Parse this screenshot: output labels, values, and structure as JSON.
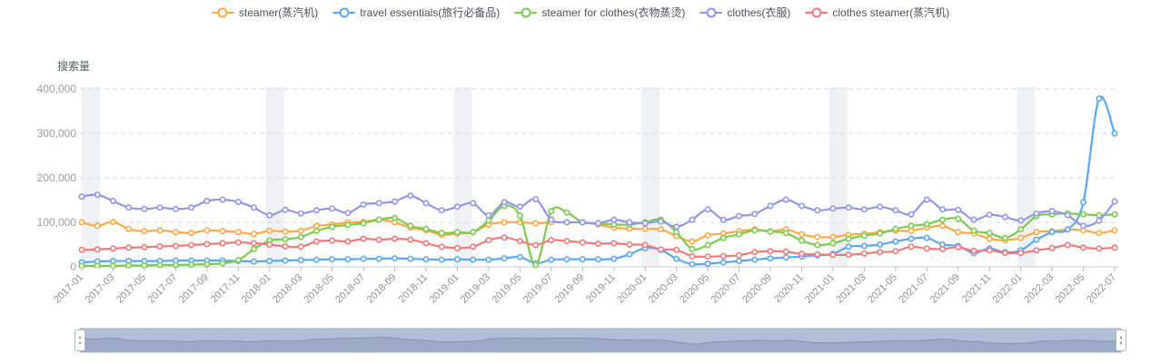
{
  "legend": {
    "items": [
      {
        "key": "steamer",
        "label": "steamer(蒸汽机)",
        "color": "#FFA843"
      },
      {
        "key": "travel-essentials",
        "label": "travel essentials(旅行必备品)",
        "color": "#57A9F5"
      },
      {
        "key": "steamer-for-clothes",
        "label": "steamer for clothes(衣物蒸烫)",
        "color": "#77CE4B"
      },
      {
        "key": "clothes",
        "label": "clothes(衣服)",
        "color": "#9196EC"
      },
      {
        "key": "clothes-steamer",
        "label": "clothes steamer(蒸汽机)",
        "color": "#F57878"
      }
    ]
  },
  "chart_data": {
    "type": "line",
    "title": "",
    "ylabel": "搜索量",
    "xlabel": "",
    "ylim": [
      0,
      400000
    ],
    "y_tick_values": [
      0,
      100000,
      200000,
      300000,
      400000
    ],
    "y_tick_labels": [
      "0",
      "100,000",
      "200,000",
      "300,000",
      "400,000"
    ],
    "grid": "horizontal-dashed",
    "legend_position": "top-center",
    "x_label_interval": 2,
    "x_label_rotation": -45,
    "january_highlight_indices": [
      0,
      12,
      24,
      36,
      48,
      60
    ],
    "x": [
      "2017-01",
      "2017-02",
      "2017-03",
      "2017-04",
      "2017-05",
      "2017-06",
      "2017-07",
      "2017-08",
      "2017-09",
      "2017-10",
      "2017-11",
      "2017-12",
      "2018-01",
      "2018-02",
      "2018-03",
      "2018-04",
      "2018-05",
      "2018-06",
      "2018-07",
      "2018-08",
      "2018-09",
      "2018-10",
      "2018-11",
      "2018-12",
      "2019-01",
      "2019-02",
      "2019-03",
      "2019-04",
      "2019-05",
      "2019-06",
      "2019-07",
      "2019-08",
      "2019-09",
      "2019-10",
      "2019-11",
      "2019-12",
      "2020-01",
      "2020-02",
      "2020-03",
      "2020-04",
      "2020-05",
      "2020-06",
      "2020-07",
      "2020-08",
      "2020-09",
      "2020-10",
      "2020-11",
      "2020-12",
      "2021-01",
      "2021-02",
      "2021-03",
      "2021-04",
      "2021-05",
      "2021-06",
      "2021-07",
      "2021-08",
      "2021-09",
      "2021-10",
      "2021-11",
      "2021-12",
      "2022-01",
      "2022-02",
      "2022-03",
      "2022-04",
      "2022-05",
      "2022-06",
      "2022-07"
    ],
    "series": [
      {
        "key": "steamer",
        "name": "steamer(蒸汽机)",
        "color": "#FFA843",
        "values": [
          100000,
          92000,
          101000,
          85000,
          80000,
          82000,
          78000,
          76000,
          82000,
          80000,
          78000,
          74000,
          81000,
          79000,
          81000,
          92000,
          95000,
          100000,
          101000,
          106000,
          100000,
          88000,
          82000,
          72000,
          75000,
          78000,
          95000,
          100000,
          100000,
          98000,
          100000,
          100000,
          100000,
          95000,
          88000,
          86000,
          85000,
          84000,
          69000,
          57000,
          71000,
          75000,
          80000,
          84000,
          80000,
          84000,
          73000,
          67000,
          67000,
          72000,
          74000,
          78000,
          81000,
          81000,
          88000,
          92000,
          78000,
          75000,
          63000,
          60000,
          65000,
          78000,
          80000,
          84000,
          82000,
          76000,
          82000
        ]
      },
      {
        "key": "travel-essentials",
        "name": "travel essentials(旅行必备品)",
        "color": "#57A9F5",
        "values": [
          10000,
          12000,
          13000,
          13000,
          13000,
          13000,
          14000,
          14000,
          14000,
          14000,
          13000,
          12000,
          13000,
          14000,
          15000,
          16000,
          17000,
          17000,
          18000,
          18000,
          19000,
          18000,
          17000,
          16000,
          17000,
          16000,
          16000,
          19000,
          22000,
          8000,
          16000,
          17000,
          17000,
          17000,
          18000,
          28000,
          42000,
          38000,
          18000,
          6000,
          7000,
          10000,
          13000,
          16000,
          19000,
          21000,
          23000,
          26000,
          29000,
          45000,
          47000,
          50000,
          57000,
          63000,
          65000,
          50000,
          47000,
          31000,
          41000,
          33000,
          37000,
          61000,
          78000,
          84000,
          145000,
          378000,
          300000
        ]
      },
      {
        "key": "steamer-for-clothes",
        "name": "steamer for clothes(衣物蒸烫)",
        "color": "#77CE4B",
        "values": [
          2000,
          2000,
          2000,
          3000,
          3000,
          4000,
          4000,
          5000,
          6000,
          8000,
          15000,
          40000,
          59000,
          62000,
          67000,
          81000,
          90000,
          94000,
          98000,
          106000,
          110000,
          92000,
          85000,
          76000,
          78000,
          78000,
          104000,
          137000,
          115000,
          4000,
          125000,
          122000,
          100000,
          98000,
          95000,
          95000,
          100000,
          106000,
          78000,
          40000,
          49000,
          65000,
          73000,
          82000,
          79000,
          76000,
          59000,
          49000,
          53000,
          63000,
          70000,
          75000,
          85000,
          92000,
          96000,
          106000,
          108000,
          81000,
          76000,
          65000,
          84000,
          114000,
          118000,
          120000,
          118000,
          116000,
          118000
        ]
      },
      {
        "key": "clothes",
        "name": "clothes(衣服)",
        "color": "#9196EC",
        "values": [
          158000,
          162000,
          148000,
          133000,
          130000,
          133000,
          130000,
          133000,
          148000,
          151000,
          146000,
          133000,
          116000,
          128000,
          120000,
          127000,
          131000,
          121000,
          140000,
          143000,
          147000,
          160000,
          143000,
          127000,
          135000,
          143000,
          116000,
          145000,
          135000,
          152000,
          106000,
          100000,
          100000,
          98000,
          106000,
          100000,
          98000,
          102000,
          90000,
          106000,
          129000,
          106000,
          114000,
          119000,
          137000,
          151000,
          137000,
          127000,
          131000,
          133000,
          129000,
          135000,
          127000,
          118000,
          151000,
          129000,
          128000,
          106000,
          117000,
          112000,
          104000,
          120000,
          125000,
          116000,
          92000,
          104000,
          147000
        ]
      },
      {
        "key": "clothes-steamer",
        "name": "clothes steamer(蒸汽机)",
        "color": "#F57878",
        "values": [
          38000,
          39000,
          41000,
          43000,
          44000,
          46000,
          47000,
          49000,
          51000,
          53000,
          55000,
          53000,
          50000,
          46000,
          45000,
          57000,
          59000,
          57000,
          63000,
          61000,
          63000,
          61000,
          53000,
          45000,
          42000,
          45000,
          60000,
          66000,
          58000,
          49000,
          60000,
          58000,
          55000,
          52000,
          53000,
          50000,
          49000,
          39000,
          38000,
          24000,
          23000,
          24000,
          26000,
          33000,
          35000,
          34000,
          29000,
          28000,
          27000,
          27000,
          30000,
          33000,
          35000,
          45000,
          41000,
          40000,
          44000,
          36000,
          37000,
          31000,
          31000,
          37000,
          42000,
          49000,
          43000,
          41000,
          43000
        ]
      }
    ]
  },
  "colors": {
    "january_band": "rgba(186,193,209,0.22)",
    "gridline": "#d8dade",
    "axis_line": "#c9ccd1",
    "axis_tick": "#b6bac2",
    "y_label": "#989da6",
    "x_label": "#8d929b"
  },
  "datazoom": {
    "track_color": "#B2BED6",
    "track_border_color": "#A5B2CC",
    "shadow_fill_color": "#9CAAC7",
    "shadow_line_color": "#8495B8",
    "handle_color": "#FFFFFF",
    "handle_border_color": "#AEB9CB",
    "handle_dot_color": "#8A93A3"
  }
}
